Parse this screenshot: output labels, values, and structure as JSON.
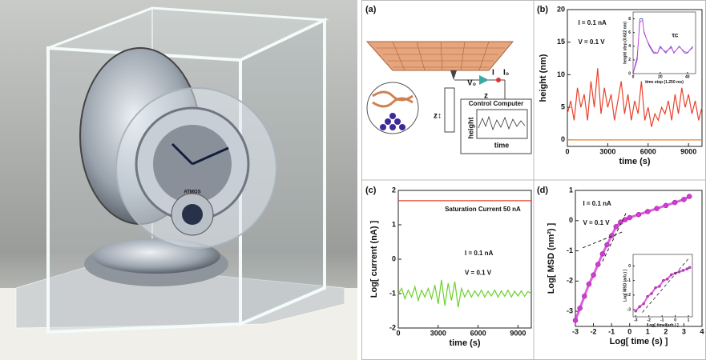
{
  "photo": {
    "dial_label": "ATMOS"
  },
  "diagram": {
    "panel_label": "(a)",
    "voltage": "V₀",
    "current": "I",
    "current_setpoint": "I₀",
    "z": "z",
    "z_arrow": "z↕",
    "box_title": "Control Computer",
    "trace_y": "height",
    "trace_x": "time"
  },
  "chart_data": [
    {
      "type": "line",
      "panel_label": "(b)",
      "y_label": "height (nm)",
      "x_label": "time (s)",
      "xlim": [
        0,
        10000
      ],
      "ylim": [
        -1,
        20
      ],
      "xticks": [
        0,
        3000,
        6000,
        9000
      ],
      "yticks": [
        0,
        5,
        10,
        15,
        20
      ],
      "annotations": [
        "I = 0.1 nA",
        "V = 0.1 V"
      ],
      "series": [
        {
          "color": "#e8432c",
          "x": [
            0,
            250,
            500,
            750,
            1000,
            1250,
            1500,
            1750,
            2000,
            2250,
            2500,
            2750,
            3000,
            3250,
            3500,
            3750,
            4000,
            4250,
            4500,
            4750,
            5000,
            5250,
            5500,
            5750,
            6000,
            6250,
            6500,
            6750,
            7000,
            7250,
            7500,
            7750,
            8000,
            8250,
            8500,
            8750,
            9000,
            9250,
            9500,
            9750,
            10000
          ],
          "values": [
            4,
            6,
            3,
            8,
            5,
            7,
            3,
            9,
            5,
            11,
            4,
            8,
            5,
            7,
            3,
            6,
            9,
            4,
            7,
            3,
            6,
            4,
            9,
            3,
            5,
            2,
            4,
            3,
            5,
            4,
            6,
            3,
            7,
            4,
            8,
            5,
            7,
            4,
            6,
            3,
            5
          ]
        },
        {
          "color": "#e8802a",
          "x": [
            0,
            10000
          ],
          "values": [
            0,
            0
          ]
        }
      ]
    },
    {
      "type": "line",
      "y_label": "height step (0.622 nm)",
      "x_label": "time step (1.250 ms)",
      "xlim": [
        0,
        46
      ],
      "ylim": [
        0,
        9
      ],
      "xticks": [
        0,
        20,
        40
      ],
      "yticks": [
        0,
        2,
        4,
        6,
        8
      ],
      "annotations": [
        "τc"
      ],
      "series": [
        {
          "color": "#3a4fd0",
          "x": [
            0,
            3,
            5,
            7,
            8,
            10,
            12,
            15,
            18,
            20,
            24,
            28,
            30,
            34,
            38,
            40,
            44
          ],
          "values": [
            0,
            2,
            8,
            8,
            6,
            5,
            4,
            3,
            3,
            4,
            3,
            4,
            3,
            4,
            3,
            3,
            4
          ]
        },
        {
          "color": "#d63ad6",
          "x": [
            0,
            3,
            5,
            7,
            8,
            10,
            12,
            15,
            18,
            20,
            24,
            28,
            30,
            34,
            38,
            40,
            44
          ],
          "values": [
            0,
            2.5,
            7.5,
            7.8,
            6.2,
            5,
            4.2,
            3.2,
            3,
            3.8,
            3.2,
            3.8,
            3.1,
            3.9,
            3.2,
            3.1,
            3.8
          ]
        }
      ]
    },
    {
      "type": "line",
      "panel_label": "(c)",
      "y_label": "Log[ current (nA) ]",
      "x_label": "time (s)",
      "xlim": [
        0,
        10000
      ],
      "ylim": [
        -2,
        2
      ],
      "xticks": [
        0,
        3000,
        6000,
        9000
      ],
      "yticks": [
        -2,
        -1,
        0,
        1,
        2
      ],
      "annotations": [
        "Saturation Current 50 nA",
        "I = 0.1 nA",
        "V = 0.1 V"
      ],
      "series": [
        {
          "color": "#e8432c",
          "x": [
            0,
            10000
          ],
          "values": [
            1.7,
            1.7
          ]
        },
        {
          "color": "#6ad22a",
          "x": [
            0,
            250,
            500,
            750,
            1000,
            1250,
            1500,
            1750,
            2000,
            2250,
            2500,
            2750,
            3000,
            3250,
            3500,
            3750,
            4000,
            4250,
            4500,
            4750,
            5000,
            5250,
            5500,
            5750,
            6000,
            6250,
            6500,
            6750,
            7000,
            7250,
            7500,
            7750,
            8000,
            8250,
            8500,
            8750,
            9000,
            9250,
            9500,
            9750,
            10000
          ],
          "values": [
            -1,
            -0.85,
            -1.15,
            -0.9,
            -1.1,
            -0.8,
            -1.2,
            -0.9,
            -1.1,
            -0.85,
            -1.15,
            -0.75,
            -1.3,
            -0.6,
            -1.35,
            -0.7,
            -1.2,
            -0.65,
            -1.4,
            -0.85,
            -1.1,
            -0.9,
            -1.1,
            -0.92,
            -1.08,
            -0.9,
            -1.1,
            -0.93,
            -1.07,
            -0.9,
            -1.1,
            -0.92,
            -1.08,
            -0.9,
            -1.1,
            -0.93,
            -1.07,
            -0.92,
            -1.08,
            -0.94,
            -1
          ]
        }
      ]
    },
    {
      "type": "scatter",
      "panel_label": "(d)",
      "y_label": "Log[ MSD (nm²) ]",
      "x_label": "Log[ time (s) ]",
      "xlim": [
        -3,
        4
      ],
      "ylim": [
        -3.5,
        1
      ],
      "xticks": [
        -3,
        -2,
        -1,
        0,
        1,
        2,
        3,
        4
      ],
      "yticks": [
        -3,
        -2,
        -1,
        0,
        1
      ],
      "annotations": [
        "I = 0.1 nA",
        "V = 0.1 V"
      ],
      "series": [
        {
          "color": "#d63ad6",
          "x": [
            -3,
            -2.75,
            -2.5,
            -2.25,
            -2,
            -1.75,
            -1.5,
            -1.25,
            -1,
            -0.75,
            -0.5,
            -0.25,
            0,
            0.5,
            1,
            1.5,
            2,
            2.5,
            3,
            3.3
          ],
          "values": [
            -3.3,
            -2.9,
            -2.5,
            -2.1,
            -1.8,
            -1.45,
            -1.1,
            -0.8,
            -0.5,
            -0.2,
            -0.05,
            0.03,
            0.1,
            0.2,
            0.3,
            0.4,
            0.5,
            0.6,
            0.7,
            0.8
          ]
        },
        {
          "color": "#222222",
          "dash": true,
          "x": [
            -2.6,
            -0.3
          ],
          "values": [
            -0.9,
            -0.35
          ]
        },
        {
          "color": "#222222",
          "dash": true,
          "x": [
            -1.5,
            -0.2
          ],
          "values": [
            -1.35,
            0.25
          ]
        }
      ]
    },
    {
      "type": "scatter",
      "y_label": "Log[ MSD (arb.) ]",
      "x_label": "Log[ time (arb.) ]",
      "xlim": [
        -3.2,
        1.3
      ],
      "ylim": [
        -3.5,
        0.8
      ],
      "xticks": [
        -3,
        -2,
        -1,
        0,
        1
      ],
      "yticks": [
        -3,
        -2,
        -1,
        0
      ],
      "annotations": [],
      "series": [
        {
          "color": "#d63ad6",
          "x": [
            -3,
            -2.7,
            -2.4,
            -2.1,
            -1.8,
            -1.5,
            -1.2,
            -0.9,
            -0.6,
            -0.3,
            0,
            0.3,
            0.6,
            0.9,
            1.1
          ],
          "values": [
            -3.1,
            -2.8,
            -2.6,
            -2.1,
            -1.9,
            -1.5,
            -1.4,
            -1.0,
            -0.9,
            -0.6,
            -0.5,
            -0.4,
            -0.3,
            -0.2,
            -0.1
          ]
        },
        {
          "color": "#222222",
          "dash": true,
          "x": [
            -2.5,
            1
          ],
          "values": [
            -3.2,
            0.5
          ]
        }
      ]
    }
  ]
}
